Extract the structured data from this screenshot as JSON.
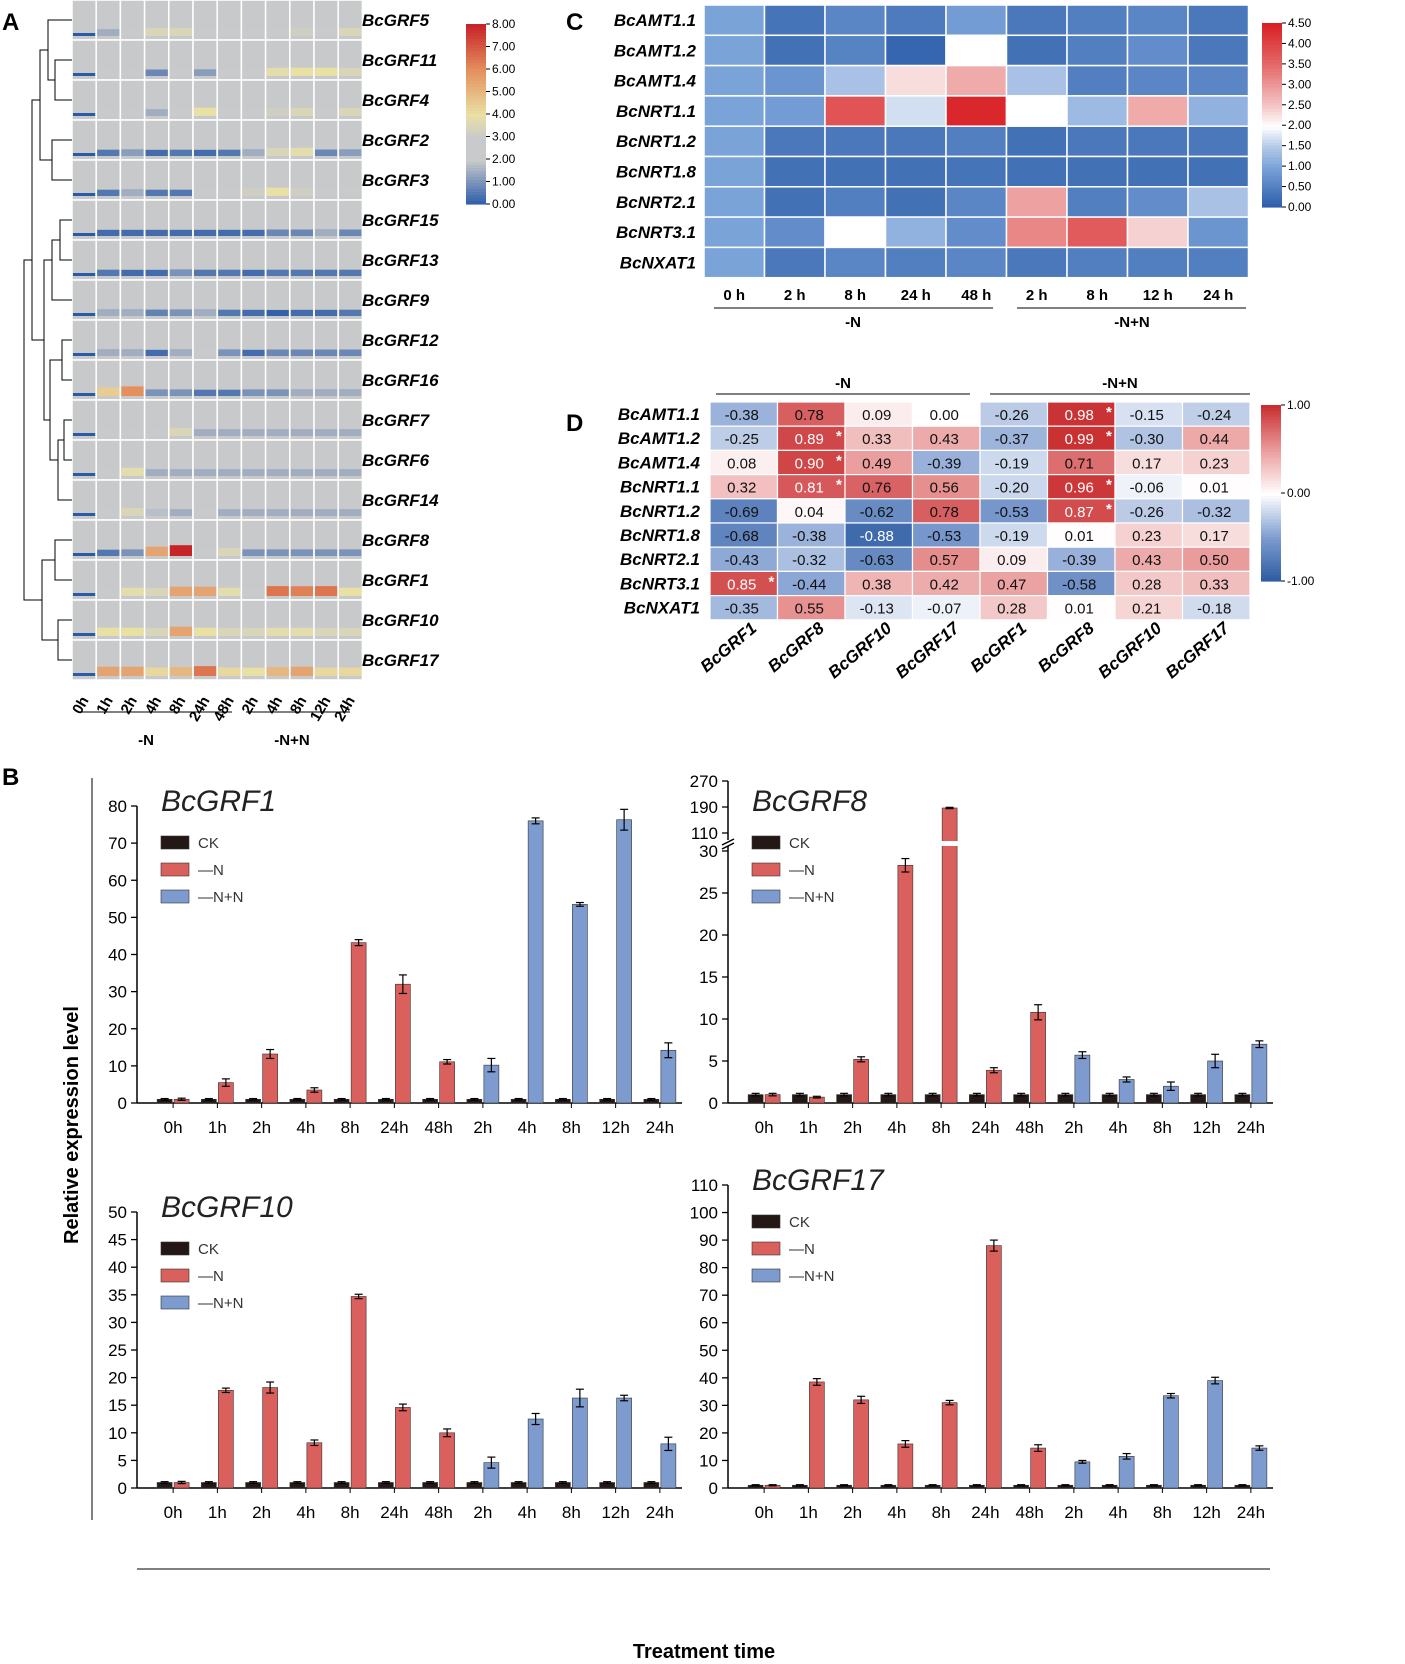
{
  "chart_data": [
    {
      "type": "heatmap",
      "panel_label": "A",
      "columns": [
        "0h",
        "1h",
        "2h",
        "4h",
        "8h",
        "24h",
        "48h",
        "2h",
        "4h",
        "8h",
        "12h",
        "24h"
      ],
      "groups": [
        {
          "label": "-N",
          "span": [
            0,
            6
          ]
        },
        {
          "label": "-N+N",
          "span": [
            7,
            11
          ]
        }
      ],
      "rows": [
        "BcGRF5",
        "BcGRF11",
        "BcGRF4",
        "BcGRF2",
        "BcGRF3",
        "BcGRF15",
        "BcGRF13",
        "BcGRF9",
        "BcGRF12",
        "BcGRF16",
        "BcGRF7",
        "BcGRF6",
        "BcGRF14",
        "BcGRF8",
        "BcGRF1",
        "BcGRF10",
        "BcGRF17"
      ],
      "values": [
        [
          0,
          1.5,
          2.5,
          3.5,
          3.5,
          3,
          3,
          2.5,
          3,
          3.2,
          2.8,
          3.5
        ],
        [
          0,
          2.2,
          2.5,
          0.8,
          2.3,
          1.2,
          3,
          2.5,
          3.8,
          4,
          4,
          3.5
        ],
        [
          0,
          2.5,
          2.5,
          1.5,
          2,
          4,
          2,
          3,
          3.2,
          3.5,
          3,
          3.5
        ],
        [
          0,
          0.5,
          1.2,
          0.3,
          0.5,
          0.3,
          0.5,
          1.5,
          3.5,
          3.8,
          0.8,
          1.2
        ],
        [
          0,
          0.5,
          1.5,
          0.5,
          0.5,
          2.2,
          2.2,
          3.2,
          4,
          3.2,
          2.5,
          2.8
        ],
        [
          0,
          0.3,
          0.3,
          0.3,
          0.3,
          0.3,
          0.3,
          0.3,
          0.8,
          0.8,
          1.5,
          0.8
        ],
        [
          0,
          0.5,
          0.3,
          0.3,
          1,
          0.5,
          0.5,
          0.3,
          0.5,
          0.5,
          0.5,
          0.5
        ],
        [
          0,
          1.5,
          1.5,
          0.7,
          1,
          1.5,
          0.5,
          0.3,
          0.1,
          0.3,
          0.3,
          0.5
        ],
        [
          0,
          1.5,
          1.5,
          0.3,
          1.5,
          2,
          1,
          0.3,
          0.8,
          0.8,
          0.8,
          0.8
        ],
        [
          0,
          4.5,
          6,
          1,
          1,
          0.5,
          0.5,
          1,
          1,
          1.5,
          1.5,
          1.5
        ],
        [
          0,
          2,
          2.5,
          2.5,
          3.5,
          1.5,
          1.5,
          1.5,
          1.5,
          1.5,
          1.5,
          1.5
        ],
        [
          0,
          2,
          3.8,
          1.5,
          1.5,
          1.5,
          1.5,
          1.5,
          1.5,
          1.5,
          1.5,
          1.5
        ],
        [
          0,
          2,
          3.5,
          1.8,
          1.5,
          2,
          1.5,
          1.5,
          1.5,
          1.5,
          1.5,
          1.5
        ],
        [
          0,
          0.5,
          1,
          5.5,
          8,
          2.5,
          3.5,
          1,
          1,
          1,
          1,
          1
        ],
        [
          0,
          2.5,
          3.8,
          3.5,
          5.5,
          5.5,
          3.8,
          3,
          6.5,
          6.3,
          6.5,
          4
        ],
        [
          0,
          4,
          4,
          3.5,
          5.5,
          4,
          3.5,
          3.5,
          3.8,
          3.8,
          3.5,
          3.5
        ],
        [
          0,
          5.5,
          5.5,
          4.2,
          5,
          6.5,
          4.2,
          4,
          5,
          5.5,
          4.2,
          4.2
        ]
      ],
      "colorbar": {
        "min": 0,
        "max": 8,
        "ticks": [
          "0.00",
          "1.00",
          "2.00",
          "3.00",
          "4.00",
          "5.00",
          "6.00",
          "7.00",
          "8.00"
        ]
      }
    },
    {
      "type": "heatmap",
      "panel_label": "C",
      "columns": [
        "0 h",
        "2 h",
        "8 h",
        "24 h",
        "48 h",
        "2 h",
        "8 h",
        "12 h",
        "24 h"
      ],
      "groups": [
        {
          "label": "-N",
          "span": [
            0,
            4
          ]
        },
        {
          "label": "-N+N",
          "span": [
            5,
            8
          ]
        }
      ],
      "rows": [
        "BcAMT1.1",
        "BcAMT1.2",
        "BcAMT1.4",
        "BcNRT1.1",
        "BcNRT1.2",
        "BcNRT1.8",
        "BcNRT2.1",
        "BcNRT3.1",
        "BcNXAT1"
      ],
      "values": [
        [
          1,
          0.35,
          0.6,
          0.45,
          0.9,
          0.4,
          0.5,
          0.6,
          0.4
        ],
        [
          1,
          0.3,
          0.55,
          0.15,
          2,
          0.3,
          0.5,
          0.7,
          0.4
        ],
        [
          1,
          0.8,
          1.4,
          2.3,
          2.8,
          1.4,
          0.5,
          0.6,
          0.6
        ],
        [
          1,
          0.9,
          3.8,
          1.7,
          4.4,
          2,
          1.3,
          2.8,
          1.2
        ],
        [
          1,
          0.4,
          0.4,
          0.4,
          0.5,
          0.3,
          0.4,
          0.4,
          0.4
        ],
        [
          1,
          0.3,
          0.3,
          0.3,
          0.35,
          0.3,
          0.3,
          0.3,
          0.3
        ],
        [
          1,
          0.3,
          0.5,
          0.3,
          0.6,
          2.9,
          0.5,
          0.7,
          1.4
        ],
        [
          1,
          0.7,
          2,
          1.2,
          0.7,
          3.2,
          3.7,
          2.4,
          0.8
        ],
        [
          1,
          0.4,
          0.6,
          0.5,
          0.6,
          0.4,
          0.5,
          0.5,
          0.5
        ]
      ],
      "colorbar": {
        "min": 0,
        "max": 4.5,
        "ticks": [
          "0.00",
          "0.50",
          "1.00",
          "1.50",
          "2.00",
          "2.50",
          "3.00",
          "3.50",
          "4.00",
          "4.50"
        ]
      }
    },
    {
      "type": "heatmap",
      "panel_label": "D",
      "columns": [
        "BcGRF1",
        "BcGRF8",
        "BcGRF10",
        "BcGRF17",
        "BcGRF1",
        "BcGRF8",
        "BcGRF10",
        "BcGRF17"
      ],
      "groups": [
        {
          "label": "-N",
          "span": [
            0,
            3
          ]
        },
        {
          "label": "-N+N",
          "span": [
            4,
            7
          ]
        }
      ],
      "rows": [
        "BcAMT1.1",
        "BcAMT1.2",
        "BcAMT1.4",
        "BcNRT1.1",
        "BcNRT1.2",
        "BcNRT1.8",
        "BcNRT2.1",
        "BcNRT3.1",
        "BcNXAT1"
      ],
      "labels": [
        [
          "-0.38",
          "0.78",
          "0.09",
          "0.00",
          "-0.26",
          "0.98",
          "-0.15",
          "-0.24"
        ],
        [
          "-0.25",
          "0.89",
          "0.33",
          "0.43",
          "-0.37",
          "0.99",
          "-0.30",
          "0.44"
        ],
        [
          "0.08",
          "0.90",
          "0.49",
          "-0.39",
          "-0.19",
          "0.71",
          "0.17",
          "0.23"
        ],
        [
          "0.32",
          "0.81",
          "0.76",
          "0.56",
          "-0.20",
          "0.96",
          "-0.06",
          "0.01"
        ],
        [
          "-0.69",
          "0.04",
          "-0.62",
          "0.78",
          "-0.53",
          "0.87",
          "-0.26",
          "-0.32"
        ],
        [
          "-0.68",
          "-0.38",
          "-0.88",
          "-0.53",
          "-0.19",
          "0.01",
          "0.23",
          "0.17"
        ],
        [
          "-0.43",
          "-0.32",
          "-0.63",
          "0.57",
          "0.09",
          "-0.39",
          "0.43",
          "0.50"
        ],
        [
          "0.85",
          "-0.44",
          "0.38",
          "0.42",
          "0.47",
          "-0.58",
          "0.28",
          "0.33"
        ],
        [
          "-0.35",
          "0.55",
          "-0.13",
          "-0.07",
          "0.28",
          "0.01",
          "0.21",
          "-0.18"
        ]
      ],
      "significant": [
        [
          0,
          5
        ],
        [
          1,
          1
        ],
        [
          1,
          5
        ],
        [
          2,
          1
        ],
        [
          3,
          1
        ],
        [
          3,
          5
        ],
        [
          4,
          5
        ],
        [
          7,
          0
        ]
      ],
      "star": "*",
      "colorbar": {
        "min": -1,
        "max": 1,
        "ticks": [
          "-1.00",
          "0.00",
          "1.00"
        ]
      }
    },
    {
      "type": "bar",
      "panel_label": "B",
      "title": "BcGRF1",
      "categories": [
        "0h",
        "1h",
        "2h",
        "4h",
        "8h",
        "24h",
        "48h",
        "2h",
        "4h",
        "8h",
        "12h",
        "24h"
      ],
      "series": [
        {
          "name": "CK",
          "values": [
            1,
            1,
            1,
            1,
            1,
            1,
            1,
            1,
            1,
            1,
            1,
            1
          ],
          "errors": [
            0.2,
            0.2,
            0.2,
            0.2,
            0.2,
            0.2,
            0.2,
            0.2,
            0.2,
            0.2,
            0.2,
            0.2
          ]
        },
        {
          "name": "—N",
          "values": [
            1,
            5.5,
            13.2,
            3.5,
            43.2,
            32,
            11.1,
            null,
            null,
            null,
            null,
            null
          ],
          "errors": [
            0.3,
            1,
            1.2,
            0.6,
            0.8,
            2.5,
            0.6,
            null,
            null,
            null,
            null,
            null
          ]
        },
        {
          "name": "—N+N",
          "values": [
            null,
            null,
            null,
            null,
            null,
            null,
            null,
            10.2,
            76,
            53.5,
            76.3,
            14.2
          ],
          "errors": [
            null,
            null,
            null,
            null,
            null,
            null,
            null,
            1.8,
            0.8,
            0.5,
            2.8,
            2
          ]
        }
      ],
      "ylim": [
        0,
        80
      ],
      "yticks": [
        "0",
        "10",
        "20",
        "30",
        "40",
        "50",
        "60",
        "70",
        "80"
      ]
    },
    {
      "type": "bar",
      "panel_label": "",
      "title": "BcGRF8",
      "categories": [
        "0h",
        "1h",
        "2h",
        "4h",
        "8h",
        "24h",
        "48h",
        "2h",
        "4h",
        "8h",
        "12h",
        "24h"
      ],
      "series": [
        {
          "name": "CK",
          "values": [
            1,
            1,
            1,
            1,
            1,
            1,
            1,
            1,
            1,
            1,
            1,
            1
          ],
          "errors": [
            0.15,
            0.15,
            0.15,
            0.15,
            0.15,
            0.15,
            0.15,
            0.15,
            0.15,
            0.15,
            0.15,
            0.15
          ]
        },
        {
          "name": "—N",
          "values": [
            1,
            0.7,
            5.2,
            28.3,
            187,
            3.9,
            10.8,
            null,
            null,
            null,
            null,
            null
          ],
          "errors": [
            0.15,
            0.1,
            0.3,
            0.8,
            2,
            0.3,
            0.9,
            null,
            null,
            null,
            null,
            null
          ]
        },
        {
          "name": "—N+N",
          "values": [
            null,
            null,
            null,
            null,
            null,
            null,
            null,
            5.7,
            2.8,
            2,
            5,
            7
          ],
          "errors": [
            null,
            null,
            null,
            null,
            null,
            null,
            null,
            0.4,
            0.3,
            0.5,
            0.8,
            0.4
          ]
        }
      ],
      "ylim": [
        0,
        270
      ],
      "axis_break": [
        30,
        110
      ],
      "yticks": [
        "0",
        "5",
        "10",
        "15",
        "20",
        "25",
        "30",
        "110",
        "190",
        "270"
      ]
    },
    {
      "type": "bar",
      "panel_label": "",
      "title": "BcGRF10",
      "categories": [
        "0h",
        "1h",
        "2h",
        "4h",
        "8h",
        "24h",
        "48h",
        "2h",
        "4h",
        "8h",
        "12h",
        "24h"
      ],
      "series": [
        {
          "name": "CK",
          "values": [
            1,
            1,
            1,
            1,
            1,
            1,
            1,
            1,
            1,
            1,
            1,
            1
          ],
          "errors": [
            0.15,
            0.15,
            0.15,
            0.15,
            0.15,
            0.15,
            0.15,
            0.15,
            0.15,
            0.15,
            0.15,
            0.15
          ]
        },
        {
          "name": "—N",
          "values": [
            1,
            17.7,
            18.2,
            8.2,
            34.7,
            14.6,
            10,
            null,
            null,
            null,
            null,
            null
          ],
          "errors": [
            0.2,
            0.4,
            1,
            0.5,
            0.4,
            0.6,
            0.7,
            null,
            null,
            null,
            null,
            null
          ]
        },
        {
          "name": "—N+N",
          "values": [
            null,
            null,
            null,
            null,
            null,
            null,
            null,
            4.6,
            12.5,
            16.3,
            16.3,
            8
          ],
          "errors": [
            null,
            null,
            null,
            null,
            null,
            null,
            null,
            1,
            1,
            1.6,
            0.5,
            1.2
          ]
        }
      ],
      "ylim": [
        0,
        50
      ],
      "yticks": [
        "0",
        "5",
        "10",
        "15",
        "20",
        "25",
        "30",
        "35",
        "40",
        "45",
        "50"
      ]
    },
    {
      "type": "bar",
      "panel_label": "",
      "title": "BcGRF17",
      "categories": [
        "0h",
        "1h",
        "2h",
        "4h",
        "8h",
        "24h",
        "48h",
        "2h",
        "4h",
        "8h",
        "12h",
        "24h"
      ],
      "series": [
        {
          "name": "CK",
          "values": [
            1,
            1,
            1,
            1,
            1,
            1,
            1,
            1,
            1,
            1,
            1,
            1
          ],
          "errors": [
            0.2,
            0.2,
            0.2,
            0.2,
            0.2,
            0.2,
            0.2,
            0.2,
            0.2,
            0.2,
            0.2,
            0.2
          ]
        },
        {
          "name": "—N",
          "values": [
            1,
            38.5,
            32,
            16,
            31,
            88,
            14.5,
            null,
            null,
            null,
            null,
            null
          ],
          "errors": [
            0.2,
            1.2,
            1.3,
            1.2,
            0.8,
            2,
            1.2,
            null,
            null,
            null,
            null,
            null
          ]
        },
        {
          "name": "—N+N",
          "values": [
            null,
            null,
            null,
            null,
            null,
            null,
            null,
            9.5,
            11.5,
            33.5,
            39,
            14.5
          ],
          "errors": [
            null,
            null,
            null,
            null,
            null,
            null,
            null,
            0.5,
            1,
            0.8,
            1.2,
            0.8
          ]
        }
      ],
      "ylim": [
        0,
        110
      ],
      "yticks": [
        "0",
        "10",
        "20",
        "30",
        "40",
        "50",
        "60",
        "70",
        "80",
        "90",
        "100",
        "110"
      ]
    }
  ],
  "axes": {
    "ylabel": "Relative expression level",
    "xlabel": "Treatment time"
  },
  "colors": {
    "ck": "#231815",
    "minus_n": "#d9605c",
    "plus_n": "#7d9bce",
    "heat_low": "#2a5ba8",
    "heat_mid": "#c9cacb",
    "heat_yellow": "#e9e0a4",
    "heat_high": "#c7242a"
  }
}
